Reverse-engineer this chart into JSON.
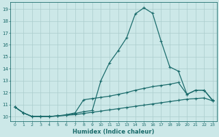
{
  "xlabel": "Humidex (Indice chaleur)",
  "ylabel_ticks": [
    10,
    11,
    12,
    13,
    14,
    15,
    16,
    17,
    18,
    19
  ],
  "xticks": [
    0,
    1,
    2,
    3,
    4,
    5,
    6,
    7,
    8,
    9,
    10,
    11,
    12,
    13,
    14,
    15,
    16,
    17,
    18,
    19,
    20,
    21,
    22,
    23
  ],
  "ylim": [
    9.6,
    19.6
  ],
  "xlim": [
    -0.5,
    23.5
  ],
  "background_color": "#cce8e8",
  "grid_color": "#aacccc",
  "line_color": "#1a6b6b",
  "line1_x": [
    0,
    1,
    2,
    3,
    4,
    5,
    6,
    7,
    8,
    9,
    10,
    11,
    12,
    13,
    14,
    15,
    16,
    17,
    18,
    19,
    20,
    21,
    22,
    23
  ],
  "line1_y": [
    10.8,
    10.3,
    10.0,
    10.0,
    10.0,
    10.05,
    10.1,
    10.25,
    10.4,
    10.5,
    13.0,
    14.5,
    15.5,
    16.6,
    18.6,
    19.1,
    18.65,
    16.3,
    14.15,
    13.8,
    11.85,
    12.2,
    12.2,
    11.3
  ],
  "line2_x": [
    0,
    1,
    2,
    3,
    4,
    5,
    6,
    7,
    8,
    9,
    10,
    11,
    12,
    13,
    14,
    15,
    16,
    17,
    18,
    19,
    20,
    21,
    22,
    23
  ],
  "line2_y": [
    10.8,
    10.3,
    10.0,
    10.0,
    10.0,
    10.05,
    10.15,
    10.3,
    11.4,
    11.5,
    11.6,
    11.7,
    11.85,
    12.0,
    12.2,
    12.35,
    12.5,
    12.6,
    12.7,
    12.85,
    11.85,
    12.2,
    12.2,
    11.35
  ],
  "line3_x": [
    0,
    1,
    2,
    3,
    4,
    5,
    6,
    7,
    8,
    9,
    10,
    11,
    12,
    13,
    14,
    15,
    16,
    17,
    18,
    19,
    20,
    21,
    22,
    23
  ],
  "line3_y": [
    10.8,
    10.3,
    10.0,
    10.0,
    10.0,
    10.05,
    10.1,
    10.15,
    10.25,
    10.35,
    10.45,
    10.55,
    10.65,
    10.75,
    10.85,
    10.95,
    11.05,
    11.15,
    11.25,
    11.35,
    11.45,
    11.5,
    11.55,
    11.3
  ],
  "marker": "P",
  "markersize": 2.5,
  "linewidth": 0.9
}
